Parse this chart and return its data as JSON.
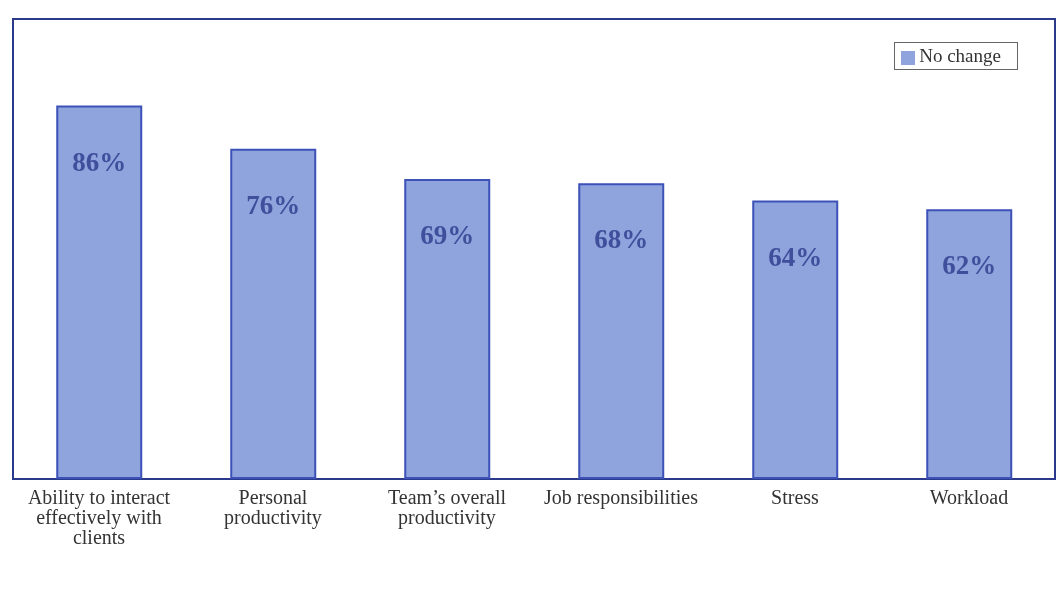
{
  "chart_data": {
    "type": "bar",
    "categories": [
      "Ability to interact effectively with clients",
      "Personal productivity",
      "Team’s overall productivity",
      "Job responsibilities",
      "Stress",
      "Workload"
    ],
    "series": [
      {
        "name": "No change",
        "color": "#8fa3dc",
        "values": [
          86,
          76,
          69,
          68,
          64,
          62
        ],
        "value_labels": [
          "86%",
          "76%",
          "69%",
          "68%",
          "64%",
          "62%"
        ]
      }
    ],
    "legend": "top right",
    "grid": false
  }
}
